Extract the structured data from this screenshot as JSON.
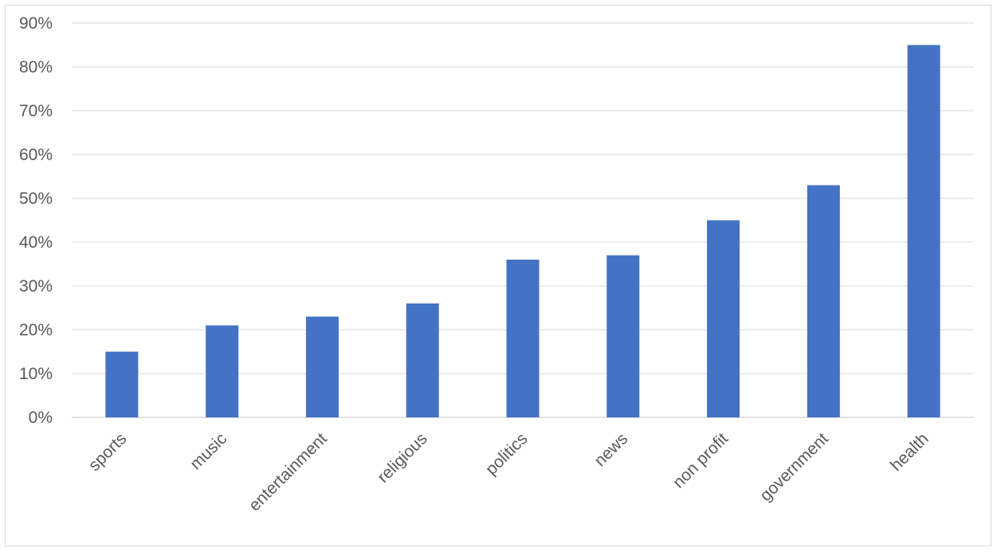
{
  "chart_data": {
    "type": "bar",
    "title": "",
    "xlabel": "",
    "ylabel": "",
    "categories": [
      "sports",
      "music",
      "entertainment",
      "religious",
      "politics",
      "news",
      "non profit",
      "government",
      "health"
    ],
    "values": [
      15,
      21,
      23,
      26,
      36,
      37,
      45,
      53,
      85
    ],
    "value_unit": "%",
    "ylim": [
      0,
      90
    ],
    "yticks": [
      "0%",
      "10%",
      "20%",
      "30%",
      "40%",
      "50%",
      "60%",
      "70%",
      "80%",
      "90%"
    ],
    "grid": true,
    "legend": "none",
    "colors": {
      "bar": "#4472c4",
      "grid": "#d9d9d9",
      "axis": "#d9d9d9",
      "text": "#595959"
    }
  }
}
